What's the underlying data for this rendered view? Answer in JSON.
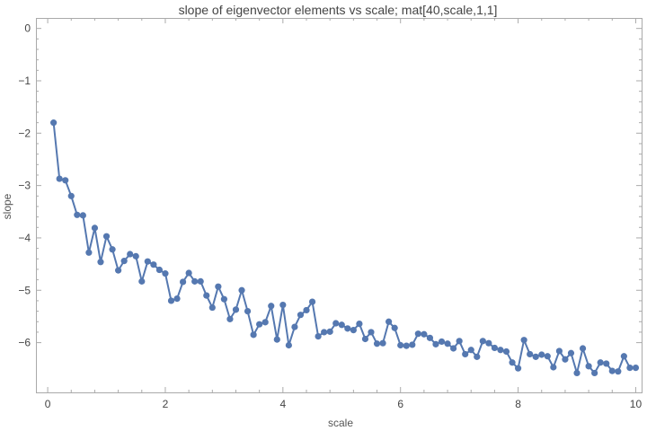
{
  "chart_data": {
    "type": "line",
    "title": "slope of eigenvector elements vs scale; mat[40,scale,1,1]",
    "xlabel": "scale",
    "ylabel": "slope",
    "xlim": [
      -0.2,
      10.1
    ],
    "ylim": [
      -6.95,
      0.2
    ],
    "xticks": [
      0,
      2,
      4,
      6,
      8,
      10
    ],
    "yticks": [
      0,
      -1,
      -2,
      -3,
      -4,
      -5,
      -6
    ],
    "ytick_labels": [
      "0",
      "−1",
      "−2",
      "−3",
      "−4",
      "−5",
      "−6"
    ],
    "grid": false,
    "markers": true,
    "colors": {
      "series": "#5578b0",
      "frame": "#aaaaaa",
      "tick_text": "#444444"
    },
    "series": [
      {
        "x": [
          0.1,
          0.2,
          0.3,
          0.4,
          0.5,
          0.6,
          0.7,
          0.8,
          0.9,
          1.0,
          1.1,
          1.2,
          1.3,
          1.4,
          1.5,
          1.6,
          1.7,
          1.8,
          1.9,
          2.0,
          2.1,
          2.2,
          2.3,
          2.4,
          2.5,
          2.6,
          2.7,
          2.8,
          2.9,
          3.0,
          3.1,
          3.2,
          3.3,
          3.4,
          3.5,
          3.6,
          3.7,
          3.8,
          3.9,
          4.0,
          4.1,
          4.2,
          4.3,
          4.4,
          4.5,
          4.6,
          4.7,
          4.8,
          4.9,
          5.0,
          5.1,
          5.2,
          5.3,
          5.4,
          5.5,
          5.6,
          5.7,
          5.8,
          5.9,
          6.0,
          6.1,
          6.2,
          6.3,
          6.4,
          6.5,
          6.6,
          6.7,
          6.8,
          6.9,
          7.0,
          7.1,
          7.2,
          7.3,
          7.4,
          7.5,
          7.6,
          7.7,
          7.8,
          7.9,
          8.0,
          8.1,
          8.2,
          8.3,
          8.4,
          8.5,
          8.6,
          8.7,
          8.8,
          8.9,
          9.0,
          9.1,
          9.2,
          9.3,
          9.4,
          9.5,
          9.6,
          9.7,
          9.8,
          9.9,
          10.0
        ],
        "y": [
          -1.8,
          -2.87,
          -2.9,
          -3.2,
          -3.56,
          -3.57,
          -4.28,
          -3.81,
          -4.46,
          -3.97,
          -4.22,
          -4.62,
          -4.44,
          -4.31,
          -4.35,
          -4.83,
          -4.45,
          -4.51,
          -4.61,
          -4.68,
          -5.2,
          -5.16,
          -4.84,
          -4.67,
          -4.83,
          -4.83,
          -5.1,
          -5.33,
          -4.93,
          -5.17,
          -5.55,
          -5.37,
          -5.0,
          -5.4,
          -5.85,
          -5.65,
          -5.61,
          -5.3,
          -5.94,
          -5.28,
          -6.05,
          -5.7,
          -5.47,
          -5.38,
          -5.22,
          -5.88,
          -5.8,
          -5.79,
          -5.63,
          -5.66,
          -5.73,
          -5.76,
          -5.64,
          -5.93,
          -5.8,
          -6.02,
          -6.01,
          -5.6,
          -5.72,
          -6.05,
          -6.06,
          -6.04,
          -5.83,
          -5.84,
          -5.91,
          -6.03,
          -5.98,
          -6.02,
          -6.11,
          -5.97,
          -6.22,
          -6.14,
          -6.27,
          -5.97,
          -6.01,
          -6.1,
          -6.14,
          -6.17,
          -6.38,
          -6.49,
          -5.95,
          -6.22,
          -6.27,
          -6.23,
          -6.26,
          -6.47,
          -6.16,
          -6.32,
          -6.2,
          -6.58,
          -6.11,
          -6.45,
          -6.58,
          -6.38,
          -6.4,
          -6.54,
          -6.55,
          -6.26,
          -6.48,
          -6.48
        ]
      }
    ]
  }
}
